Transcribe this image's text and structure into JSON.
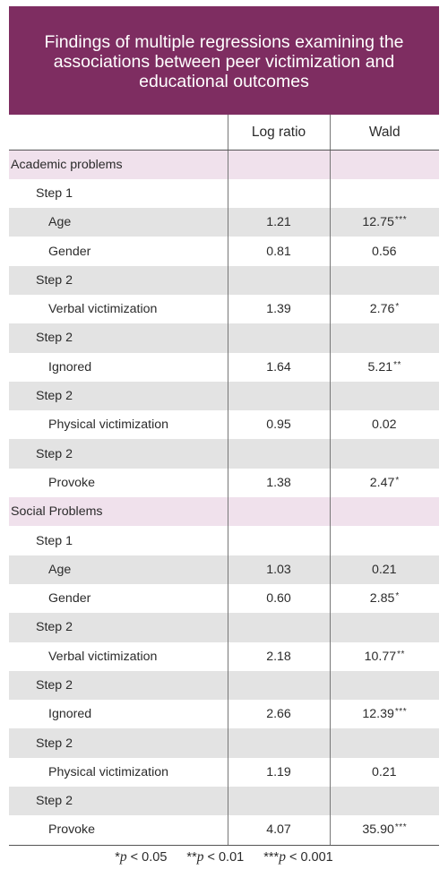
{
  "title_lines": [
    "Findings of multiple regressions examining the",
    "associations between peer victimization and",
    "educational outcomes"
  ],
  "columns": [
    "",
    "Log ratio",
    "Wald"
  ],
  "rows": [
    {
      "label": "Academic problems",
      "level": 0,
      "log_ratio": "",
      "wald": "",
      "stars": "",
      "style": "section"
    },
    {
      "label": "Step 1",
      "level": 1,
      "log_ratio": "",
      "wald": "",
      "stars": "",
      "style": "plain"
    },
    {
      "label": "Age",
      "level": 2,
      "log_ratio": "1.21",
      "wald": "12.75",
      "stars": "***",
      "style": "shade"
    },
    {
      "label": "Gender",
      "level": 2,
      "log_ratio": "0.81",
      "wald": "0.56",
      "stars": "",
      "style": "plain"
    },
    {
      "label": "Step 2",
      "level": 1,
      "log_ratio": "",
      "wald": "",
      "stars": "",
      "style": "shade"
    },
    {
      "label": "Verbal victimization",
      "level": 2,
      "log_ratio": "1.39",
      "wald": "2.76",
      "stars": "*",
      "style": "plain"
    },
    {
      "label": "Step 2",
      "level": 1,
      "log_ratio": "",
      "wald": "",
      "stars": "",
      "style": "shade"
    },
    {
      "label": "Ignored",
      "level": 2,
      "log_ratio": "1.64",
      "wald": "5.21",
      "stars": "**",
      "style": "plain"
    },
    {
      "label": "Step 2",
      "level": 1,
      "log_ratio": "",
      "wald": "",
      "stars": "",
      "style": "shade"
    },
    {
      "label": "Physical victimization",
      "level": 2,
      "log_ratio": "0.95",
      "wald": "0.02",
      "stars": "",
      "style": "plain"
    },
    {
      "label": "Step 2",
      "level": 1,
      "log_ratio": "",
      "wald": "",
      "stars": "",
      "style": "shade"
    },
    {
      "label": "Provoke",
      "level": 2,
      "log_ratio": "1.38",
      "wald": "2.47",
      "stars": "*",
      "style": "plain"
    },
    {
      "label": "Social Problems",
      "level": 0,
      "log_ratio": "",
      "wald": "",
      "stars": "",
      "style": "section"
    },
    {
      "label": "Step 1",
      "level": 1,
      "log_ratio": "",
      "wald": "",
      "stars": "",
      "style": "plain"
    },
    {
      "label": "Age",
      "level": 2,
      "log_ratio": "1.03",
      "wald": "0.21",
      "stars": "",
      "style": "shade"
    },
    {
      "label": "Gender",
      "level": 2,
      "log_ratio": "0.60",
      "wald": "2.85",
      "stars": "*",
      "style": "plain"
    },
    {
      "label": "Step 2",
      "level": 1,
      "log_ratio": "",
      "wald": "",
      "stars": "",
      "style": "shade"
    },
    {
      "label": "Verbal victimization",
      "level": 2,
      "log_ratio": "2.18",
      "wald": "10.77",
      "stars": "**",
      "style": "plain"
    },
    {
      "label": "Step 2",
      "level": 1,
      "log_ratio": "",
      "wald": "",
      "stars": "",
      "style": "shade"
    },
    {
      "label": "Ignored",
      "level": 2,
      "log_ratio": "2.66",
      "wald": "12.39",
      "stars": "***",
      "style": "plain"
    },
    {
      "label": "Step 2",
      "level": 1,
      "log_ratio": "",
      "wald": "",
      "stars": "",
      "style": "shade"
    },
    {
      "label": "Physical victimization",
      "level": 2,
      "log_ratio": "1.19",
      "wald": "0.21",
      "stars": "",
      "style": "plain"
    },
    {
      "label": "Step 2",
      "level": 1,
      "log_ratio": "",
      "wald": "",
      "stars": "",
      "style": "shade"
    },
    {
      "label": "Provoke",
      "level": 2,
      "log_ratio": "4.07",
      "wald": "35.90",
      "stars": "***",
      "style": "plain"
    }
  ],
  "footnotes": [
    {
      "stars": "*",
      "p": "p",
      "rest": " < 0.05"
    },
    {
      "stars": "**",
      "p": "p",
      "rest": " < 0.01"
    },
    {
      "stars": "***",
      "p": "p",
      "rest": " < 0.001"
    }
  ],
  "colors": {
    "title_bg": "#7e2d61",
    "section_bg": "#f0e1ec",
    "shade_bg": "#e3e3e3"
  }
}
